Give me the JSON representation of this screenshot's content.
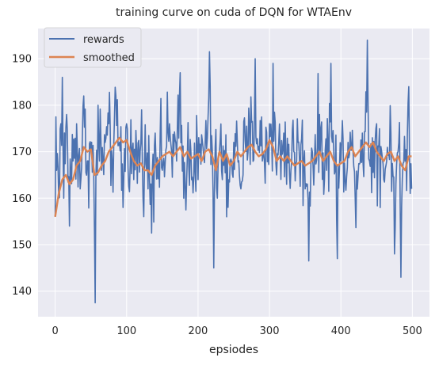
{
  "chart_data": {
    "type": "line",
    "title": "training curve on cuda of DQN for WTAEnv",
    "xlabel": "epsiodes",
    "ylabel": "",
    "xlim": [
      -24,
      524
    ],
    "ylim": [
      134.5,
      196.5
    ],
    "xticks": [
      0,
      100,
      200,
      300,
      400,
      500
    ],
    "yticks": [
      140,
      150,
      160,
      170,
      180,
      190
    ],
    "grid": true,
    "legend_position": "top-left",
    "colors": {
      "rewards": "#4c72b0",
      "smoothed": "#dd8452",
      "plot_background": "#eaeaf2",
      "grid": "#ffffff",
      "text": "#262626"
    },
    "series": [
      {
        "name": "rewards",
        "noisy": true,
        "x_start": 0,
        "x_end": 499,
        "anchors": [
          [
            0,
            156
          ],
          [
            1,
            177.5
          ],
          [
            2,
            166
          ],
          [
            5,
            160
          ],
          [
            8,
            176
          ],
          [
            10,
            186
          ],
          [
            12,
            160
          ],
          [
            16,
            178
          ],
          [
            20,
            154
          ],
          [
            25,
            168
          ],
          [
            30,
            176
          ],
          [
            35,
            162
          ],
          [
            40,
            182
          ],
          [
            45,
            168
          ],
          [
            50,
            170
          ],
          [
            55,
            153
          ],
          [
            56,
            137.5
          ],
          [
            60,
            180
          ],
          [
            65,
            166
          ],
          [
            70,
            172
          ],
          [
            75,
            176
          ],
          [
            80,
            168
          ],
          [
            85,
            182
          ],
          [
            90,
            172
          ],
          [
            95,
            158
          ],
          [
            100,
            176
          ],
          [
            110,
            164
          ],
          [
            120,
            172
          ],
          [
            130,
            162
          ],
          [
            135,
            152.5
          ],
          [
            140,
            174
          ],
          [
            150,
            166
          ],
          [
            160,
            176
          ],
          [
            170,
            168
          ],
          [
            175,
            187
          ],
          [
            180,
            160
          ],
          [
            190,
            170
          ],
          [
            200,
            164
          ],
          [
            210,
            172
          ],
          [
            216,
            191.5
          ],
          [
            220,
            170
          ],
          [
            222,
            145
          ],
          [
            230,
            170
          ],
          [
            240,
            156
          ],
          [
            250,
            172
          ],
          [
            260,
            162
          ],
          [
            270,
            170
          ],
          [
            280,
            190
          ],
          [
            290,
            168
          ],
          [
            300,
            176
          ],
          [
            305,
            189
          ],
          [
            310,
            165
          ],
          [
            320,
            174
          ],
          [
            330,
            166
          ],
          [
            340,
            172
          ],
          [
            350,
            162
          ],
          [
            355,
            146.5
          ],
          [
            360,
            170
          ],
          [
            370,
            178
          ],
          [
            380,
            166
          ],
          [
            386,
            189
          ],
          [
            390,
            170
          ],
          [
            395,
            147
          ],
          [
            400,
            168
          ],
          [
            410,
            172
          ],
          [
            420,
            160
          ],
          [
            430,
            174
          ],
          [
            437,
            194
          ],
          [
            440,
            168
          ],
          [
            450,
            176
          ],
          [
            460,
            164
          ],
          [
            470,
            174
          ],
          [
            475,
            148
          ],
          [
            480,
            170
          ],
          [
            484,
            143
          ],
          [
            490,
            168
          ],
          [
            495,
            184
          ],
          [
            499,
            162
          ]
        ]
      },
      {
        "name": "smoothed",
        "x_start": 0,
        "x_end": 499,
        "anchors": [
          [
            0,
            156
          ],
          [
            5,
            161
          ],
          [
            10,
            164
          ],
          [
            15,
            165
          ],
          [
            20,
            163
          ],
          [
            25,
            164
          ],
          [
            30,
            167
          ],
          [
            35,
            168
          ],
          [
            40,
            171
          ],
          [
            45,
            170
          ],
          [
            50,
            170.5
          ],
          [
            55,
            165
          ],
          [
            60,
            165.5
          ],
          [
            65,
            167
          ],
          [
            70,
            168
          ],
          [
            75,
            170
          ],
          [
            80,
            171
          ],
          [
            85,
            172
          ],
          [
            90,
            173
          ],
          [
            95,
            172
          ],
          [
            100,
            172.5
          ],
          [
            105,
            170
          ],
          [
            110,
            168
          ],
          [
            115,
            167
          ],
          [
            120,
            167.5
          ],
          [
            125,
            166
          ],
          [
            130,
            166
          ],
          [
            135,
            165
          ],
          [
            140,
            167
          ],
          [
            145,
            168
          ],
          [
            150,
            169
          ],
          [
            155,
            169.5
          ],
          [
            160,
            170
          ],
          [
            165,
            169
          ],
          [
            170,
            170
          ],
          [
            175,
            171
          ],
          [
            180,
            169
          ],
          [
            185,
            170
          ],
          [
            190,
            168.5
          ],
          [
            195,
            169
          ],
          [
            200,
            169.5
          ],
          [
            205,
            168
          ],
          [
            210,
            170
          ],
          [
            215,
            170.5
          ],
          [
            220,
            169
          ],
          [
            225,
            166
          ],
          [
            230,
            170
          ],
          [
            235,
            168
          ],
          [
            240,
            169.5
          ],
          [
            245,
            167
          ],
          [
            250,
            168
          ],
          [
            255,
            170
          ],
          [
            260,
            169
          ],
          [
            265,
            170
          ],
          [
            270,
            171
          ],
          [
            275,
            171.5
          ],
          [
            280,
            170
          ],
          [
            285,
            169
          ],
          [
            290,
            169.5
          ],
          [
            295,
            170.5
          ],
          [
            300,
            172.5
          ],
          [
            305,
            171
          ],
          [
            310,
            168
          ],
          [
            315,
            169
          ],
          [
            320,
            168
          ],
          [
            325,
            169
          ],
          [
            330,
            168
          ],
          [
            335,
            167
          ],
          [
            340,
            167.5
          ],
          [
            345,
            168
          ],
          [
            350,
            167
          ],
          [
            355,
            167.5
          ],
          [
            360,
            168
          ],
          [
            365,
            169
          ],
          [
            370,
            170
          ],
          [
            375,
            168
          ],
          [
            380,
            169
          ],
          [
            385,
            170
          ],
          [
            390,
            168
          ],
          [
            395,
            167
          ],
          [
            400,
            167.5
          ],
          [
            405,
            168
          ],
          [
            410,
            170
          ],
          [
            415,
            171
          ],
          [
            420,
            169
          ],
          [
            425,
            170
          ],
          [
            430,
            171
          ],
          [
            435,
            172
          ],
          [
            440,
            171
          ],
          [
            445,
            172
          ],
          [
            450,
            170
          ],
          [
            455,
            169
          ],
          [
            460,
            168
          ],
          [
            465,
            169.5
          ],
          [
            470,
            170
          ],
          [
            475,
            168
          ],
          [
            480,
            169
          ],
          [
            485,
            167
          ],
          [
            490,
            166
          ],
          [
            495,
            169
          ],
          [
            499,
            169
          ]
        ]
      }
    ]
  }
}
